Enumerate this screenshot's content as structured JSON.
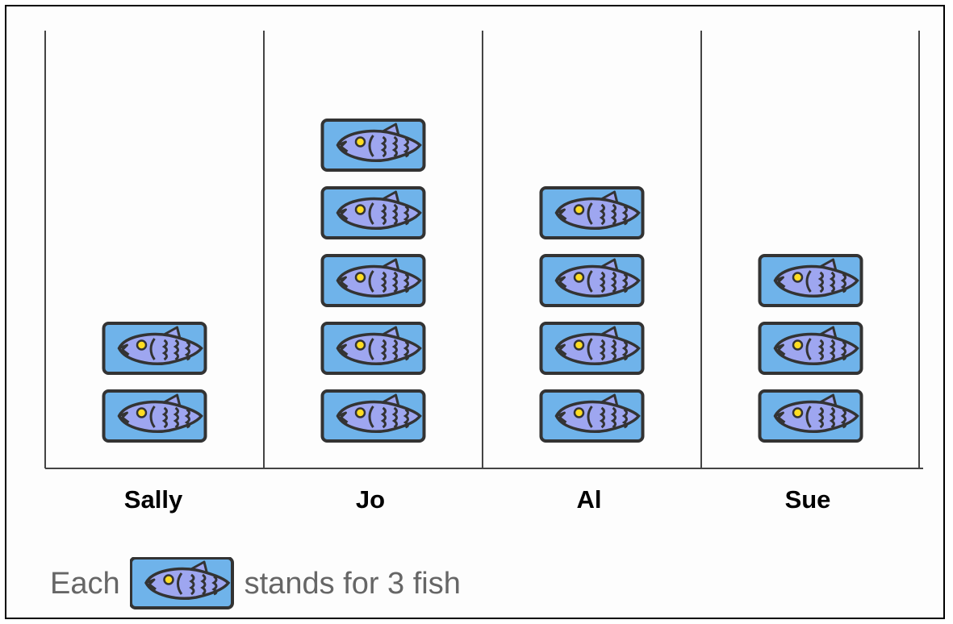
{
  "chart_data": {
    "type": "pictograph",
    "categories": [
      "Sally",
      "Jo",
      "Al",
      "Sue"
    ],
    "values": [
      2,
      5,
      4,
      3
    ],
    "key": {
      "prefix": "Each",
      "suffix": "stands for 3 fish",
      "icon": "fish-icon",
      "value_per_icon": 3
    },
    "colors": {
      "icon_fill": "#6fb3ea",
      "fish_fill": "#9ea6f0",
      "outline": "#333333"
    }
  }
}
